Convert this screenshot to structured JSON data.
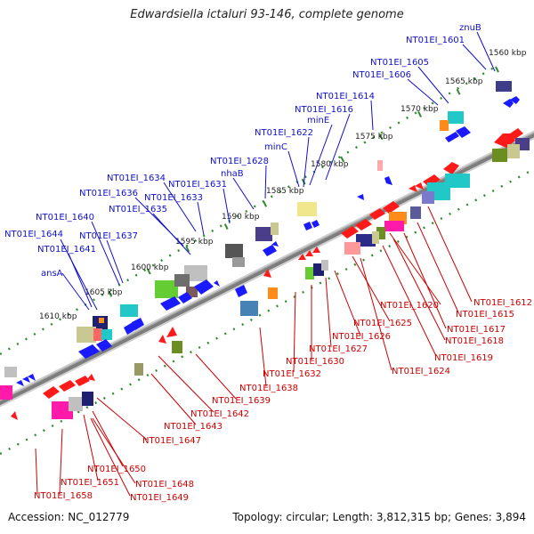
{
  "title": "Edwardsiella ictaluri 93-146, complete genome",
  "footer": {
    "accession": "Accession: NC_012779",
    "topology": "Topology: circular; Length: 3,812,315 bp; Genes: 3,894"
  },
  "positions": [
    {
      "label": "1560 kbp",
      "kbp": 1560
    },
    {
      "label": "1565 kbp",
      "kbp": 1565
    },
    {
      "label": "1570 kbp",
      "kbp": 1570
    },
    {
      "label": "1575 kbp",
      "kbp": 1575
    },
    {
      "label": "1580 kbp",
      "kbp": 1580
    },
    {
      "label": "1585 kbp",
      "kbp": 1585
    },
    {
      "label": "1590 kbp",
      "kbp": 1590
    },
    {
      "label": "1595 kbp",
      "kbp": 1595
    },
    {
      "label": "1600 kbp",
      "kbp": 1600
    },
    {
      "label": "1605 kbp",
      "kbp": 1605
    },
    {
      "label": "1610 kbp",
      "kbp": 1610
    }
  ],
  "top_labels": [
    "znuB",
    "NT01EI_1601",
    "NT01EI_1605",
    "NT01EI_1606",
    "NT01EI_1614",
    "NT01EI_1616",
    "minE",
    "NT01EI_1622",
    "minC",
    "NT01EI_1628",
    "nhaB",
    "NT01EI_1631",
    "NT01EI_1634",
    "NT01EI_1636",
    "NT01EI_1633",
    "NT01EI_1635",
    "NT01EI_1640",
    "NT01EI_1644",
    "NT01EI_1637",
    "NT01EI_1641",
    "ansA"
  ],
  "bottom_labels": [
    "NT01EI_1612",
    "NT01EI_1620",
    "NT01EI_1615",
    "NT01EI_1625",
    "NT01EI_1617",
    "NT01EI_1626",
    "NT01EI_1618",
    "NT01EI_1627",
    "NT01EI_1630",
    "NT01EI_1619",
    "NT01EI_1624",
    "NT01EI_1632",
    "NT01EI_1638",
    "NT01EI_1639",
    "NT01EI_1642",
    "NT01EI_1643",
    "NT01EI_1647",
    "NT01EI_1650",
    "NT01EI_1651",
    "NT01EI_1648",
    "NT01EI_1658",
    "NT01EI_1649"
  ],
  "colors": {
    "forward_cds": "#1a1aff",
    "reverse_cds": "#ff1a1a",
    "backbone": "#555555",
    "tick": "#2e8b2e",
    "label_forward": "#1010cc",
    "label_reverse": "#cc0000"
  }
}
